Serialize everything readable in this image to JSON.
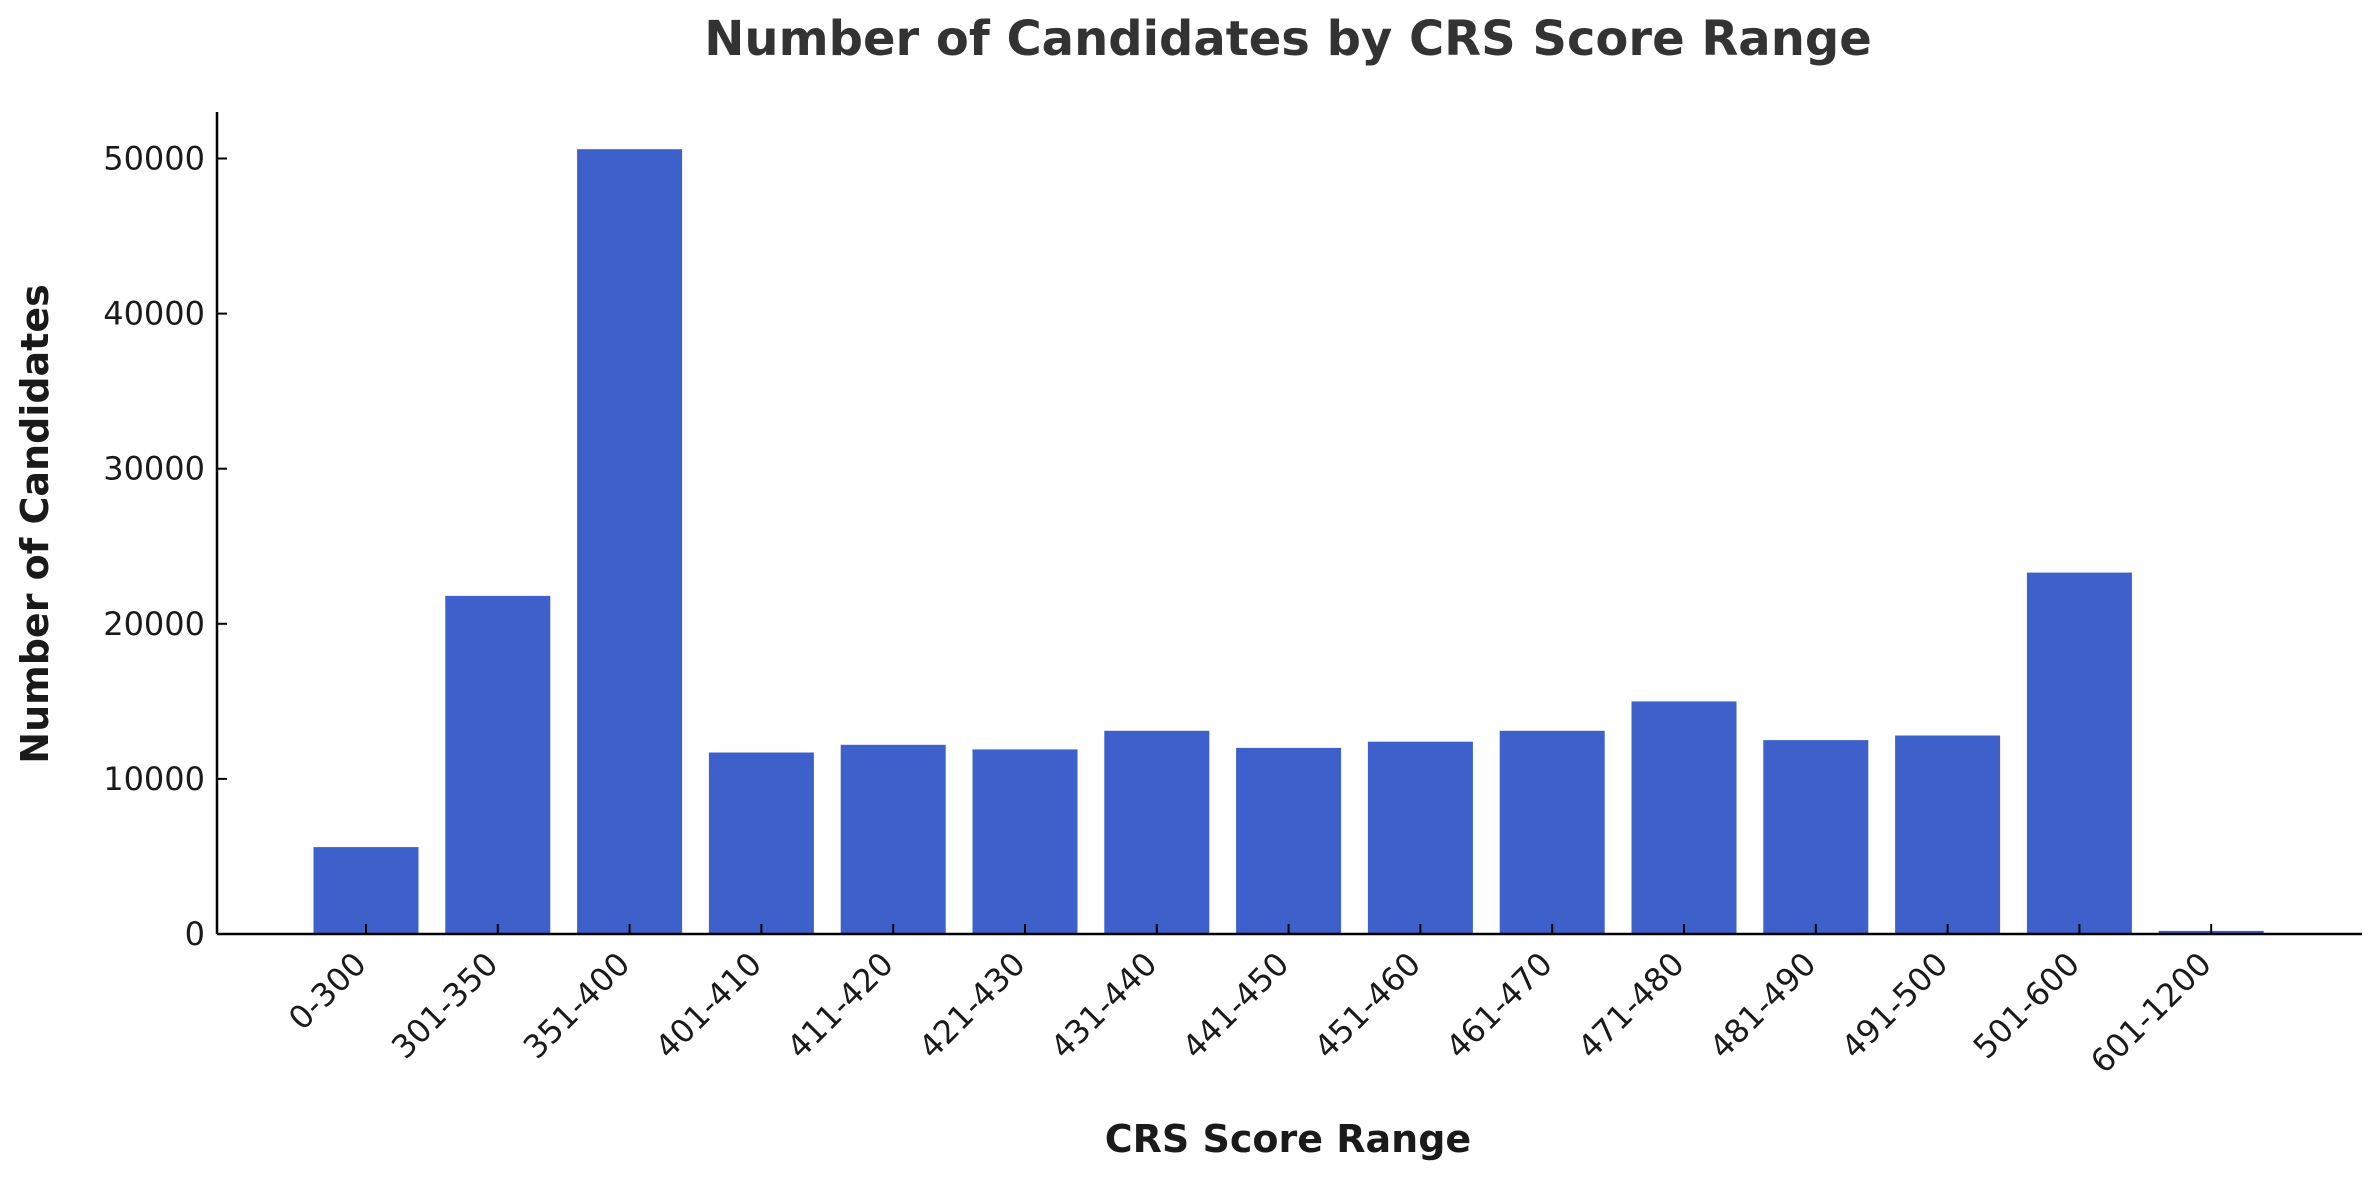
{
  "chart_data": {
    "type": "bar",
    "title": "Number of Candidates by CRS Score Range",
    "xlabel": "CRS Score Range",
    "ylabel": "Number of Candidates",
    "categories": [
      "0-300",
      "301-350",
      "351-400",
      "401-410",
      "411-420",
      "421-430",
      "431-440",
      "441-450",
      "451-460",
      "461-470",
      "471-480",
      "481-490",
      "491-500",
      "501-600",
      "601-1200"
    ],
    "values": [
      5600,
      21800,
      50600,
      11700,
      12200,
      11900,
      13100,
      12000,
      12400,
      13100,
      15000,
      12500,
      12800,
      23300,
      200
    ],
    "ylim": [
      0,
      53000
    ],
    "yticks": [
      0,
      10000,
      20000,
      30000,
      40000,
      50000
    ],
    "grid": false,
    "legend": "none",
    "bar_color": "#3e60cb"
  }
}
